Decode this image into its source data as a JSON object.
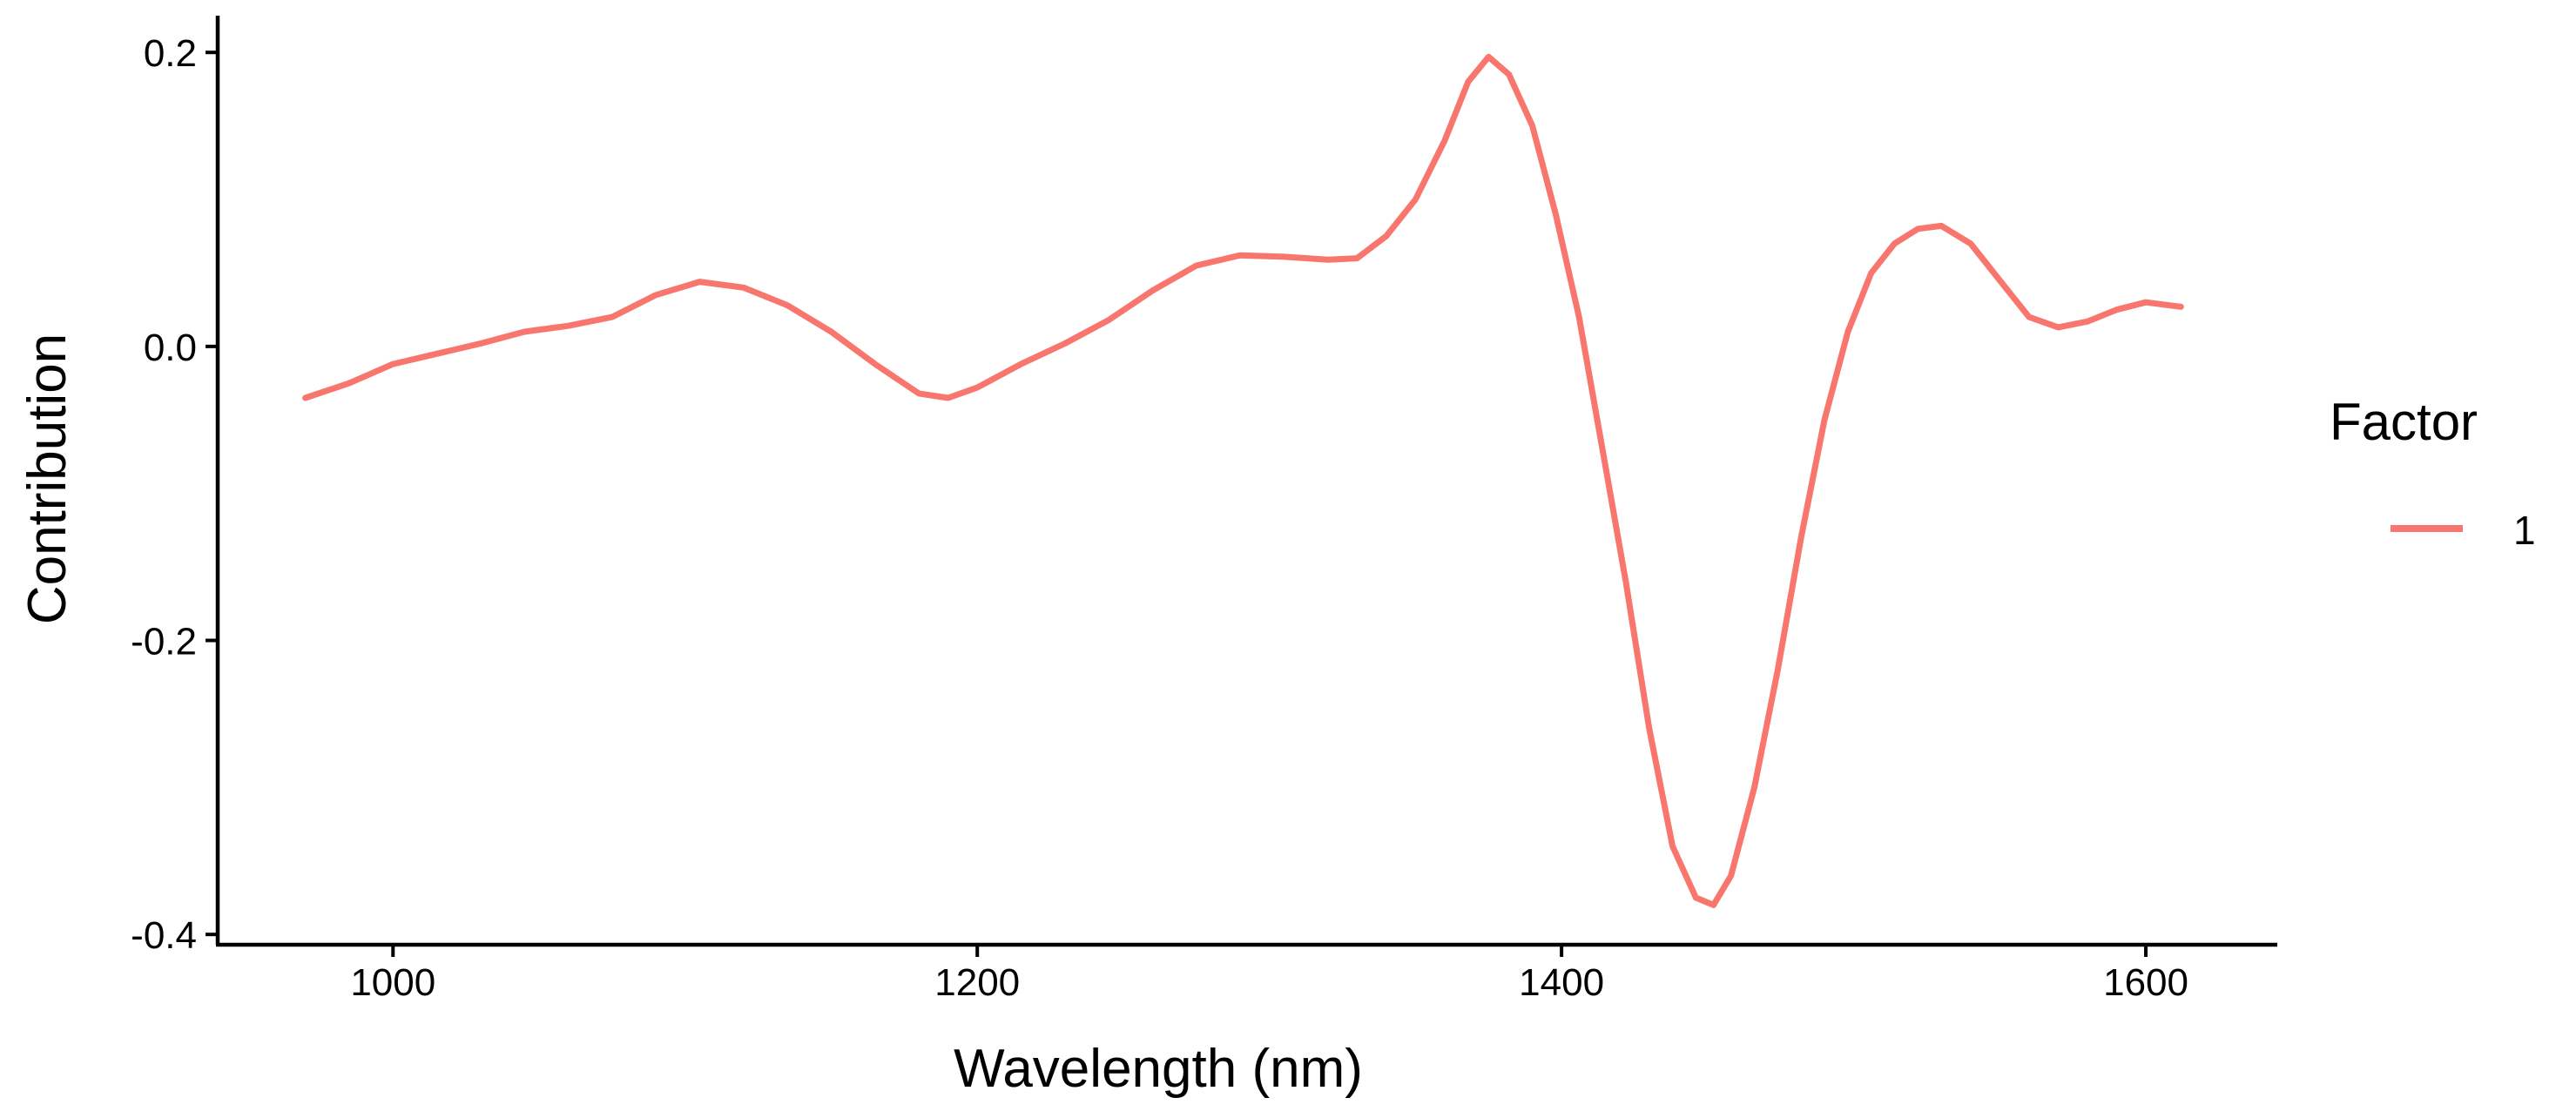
{
  "chart_data": {
    "type": "line",
    "title": "",
    "xlabel": "Wavelength (nm)",
    "ylabel": "Contribution",
    "xlim": [
      940,
      1645
    ],
    "ylim": [
      -0.407,
      0.225
    ],
    "xticks": [
      1000,
      1200,
      1400,
      1600
    ],
    "xtick_labels": [
      "1000",
      "1200",
      "1400",
      "1600"
    ],
    "yticks": [
      0.2,
      0.0,
      -0.2,
      -0.4
    ],
    "ytick_labels": [
      "0.2",
      "0.0",
      "-0.2",
      "-0.4"
    ],
    "grid": false,
    "legend": {
      "title": "Factor",
      "position": "right",
      "entries": [
        {
          "label": "1",
          "color": "#F8766D"
        }
      ]
    },
    "series": [
      {
        "name": "1",
        "color": "#F8766D",
        "x": [
          970,
          985,
          1000,
          1015,
          1030,
          1045,
          1060,
          1075,
          1090,
          1105,
          1120,
          1135,
          1150,
          1165,
          1180,
          1190,
          1200,
          1215,
          1230,
          1245,
          1260,
          1275,
          1290,
          1305,
          1320,
          1330,
          1340,
          1350,
          1360,
          1368,
          1375,
          1382,
          1390,
          1398,
          1406,
          1414,
          1422,
          1430,
          1438,
          1446,
          1452,
          1458,
          1466,
          1474,
          1482,
          1490,
          1498,
          1506,
          1514,
          1522,
          1530,
          1540,
          1550,
          1560,
          1570,
          1580,
          1590,
          1600,
          1612
        ],
        "values": [
          -0.035,
          -0.025,
          -0.012,
          -0.005,
          0.002,
          0.01,
          0.014,
          0.02,
          0.035,
          0.044,
          0.04,
          0.028,
          0.01,
          -0.012,
          -0.032,
          -0.035,
          -0.028,
          -0.012,
          0.002,
          0.018,
          0.038,
          0.055,
          0.062,
          0.061,
          0.059,
          0.06,
          0.075,
          0.1,
          0.14,
          0.18,
          0.197,
          0.185,
          0.15,
          0.09,
          0.02,
          -0.07,
          -0.16,
          -0.26,
          -0.34,
          -0.375,
          -0.38,
          -0.36,
          -0.3,
          -0.22,
          -0.13,
          -0.05,
          0.01,
          0.05,
          0.07,
          0.08,
          0.082,
          0.07,
          0.045,
          0.02,
          0.013,
          0.017,
          0.025,
          0.03,
          0.027
        ]
      }
    ]
  }
}
